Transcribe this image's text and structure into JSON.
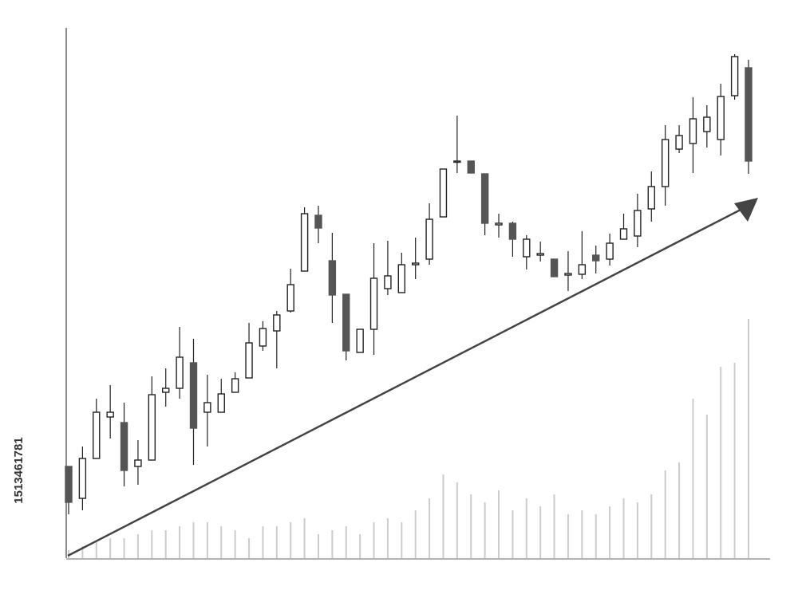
{
  "chart_data": {
    "type": "candlestick",
    "open": [
      115,
      75,
      125,
      177,
      170,
      115,
      123,
      208,
      213,
      245,
      183,
      183,
      208,
      226,
      266,
      285,
      310,
      360,
      430,
      373,
      331,
      258,
      287,
      338,
      333,
      368,
      375,
      428,
      497,
      498,
      482,
      418,
      420,
      378,
      380,
      375,
      355,
      356,
      380,
      375,
      400,
      404,
      438,
      466,
      513,
      520,
      535,
      525,
      580,
      615
    ],
    "high": [
      115,
      140,
      200,
      217,
      195,
      148,
      228,
      238,
      290,
      275,
      230,
      225,
      233,
      295,
      297,
      310,
      363,
      440,
      442,
      408,
      331,
      287,
      395,
      398,
      383,
      402,
      445,
      488,
      555,
      498,
      482,
      432,
      422,
      405,
      397,
      375,
      385,
      410,
      392,
      407,
      432,
      457,
      485,
      543,
      543,
      578,
      568,
      595,
      632,
      625
    ],
    "low": [
      55,
      60,
      125,
      150,
      90,
      92,
      123,
      190,
      200,
      117,
      140,
      183,
      208,
      226,
      260,
      238,
      308,
      360,
      395,
      295,
      248,
      258,
      255,
      330,
      333,
      350,
      368,
      428,
      483,
      483,
      405,
      402,
      378,
      362,
      372,
      353,
      335,
      350,
      357,
      367,
      400,
      390,
      422,
      442,
      508,
      483,
      515,
      505,
      575,
      482
    ],
    "close": [
      70,
      125,
      183,
      183,
      110,
      123,
      205,
      213,
      252,
      163,
      195,
      206,
      225,
      270,
      288,
      305,
      343,
      432,
      414,
      330,
      260,
      287,
      351,
      354,
      368,
      370,
      425,
      488,
      498,
      483,
      420,
      420,
      400,
      400,
      382,
      353,
      357,
      368,
      373,
      395,
      413,
      436,
      466,
      525,
      530,
      551,
      553,
      579,
      629,
      498
    ],
    "volume": [
      10,
      15,
      20,
      25,
      25,
      30,
      35,
      35,
      40,
      45,
      45,
      40,
      35,
      25,
      40,
      40,
      45,
      50,
      30,
      35,
      40,
      30,
      45,
      50,
      45,
      60,
      75,
      105,
      95,
      80,
      70,
      85,
      60,
      75,
      65,
      80,
      55,
      60,
      55,
      65,
      75,
      70,
      80,
      110,
      120,
      200,
      180,
      240,
      245,
      300
    ],
    "ylim": [
      0,
      665
    ],
    "y2lim": [
      0,
      300
    ],
    "up_color": "#ffffff",
    "down_color": "#555555",
    "volume_color": "#cccccc"
  },
  "watermark_id": "1513461781"
}
